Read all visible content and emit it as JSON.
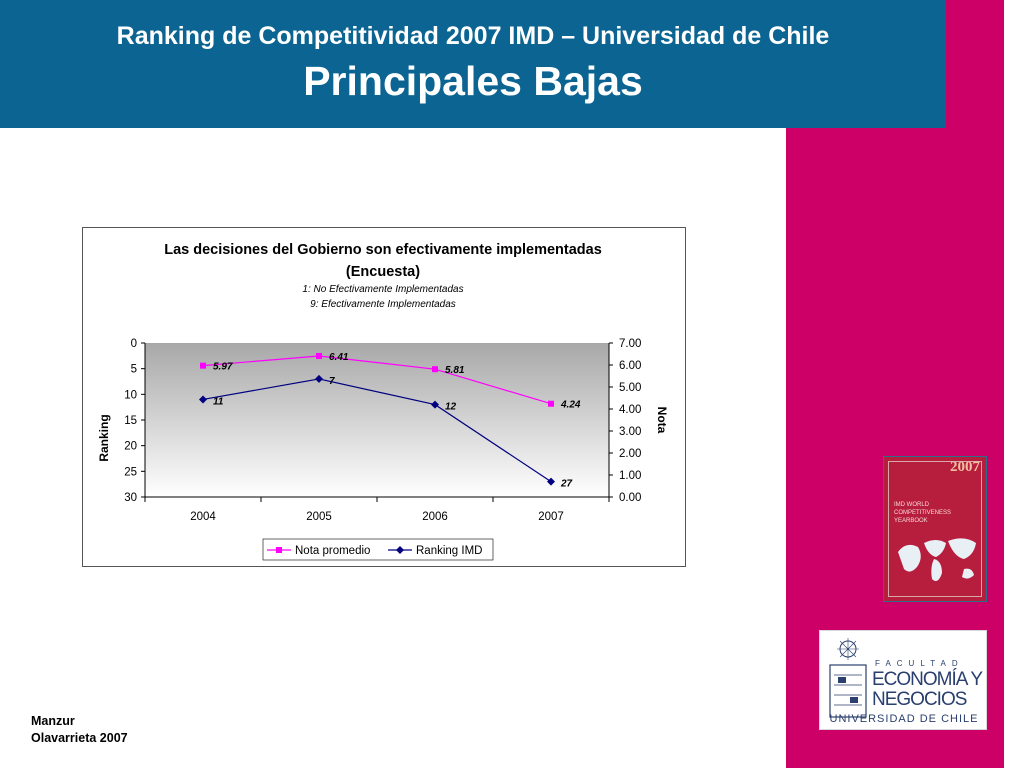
{
  "header": {
    "title": "Ranking de Competitividad 2007  IMD – Universidad de Chile",
    "subtitle": "Principales Bajas"
  },
  "colors": {
    "header_bg": "#0b6491",
    "side_band": "#cc0066",
    "series_nota": "#ff00ff",
    "series_ranking": "#000080"
  },
  "chart_data": {
    "type": "line",
    "title": "Las decisiones del Gobierno son efectivamente implementadas",
    "title_line2": "(Encuesta)",
    "subtitle_line1": "1: No Efectivamente Implementadas",
    "subtitle_line2": "9: Efectivamente Implementadas",
    "categories": [
      "2004",
      "2005",
      "2006",
      "2007"
    ],
    "y_left": {
      "label": "Ranking",
      "lim": [
        0,
        30
      ],
      "ticks": [
        "0",
        "5",
        "10",
        "15",
        "20",
        "25",
        "30"
      ],
      "inverted": true
    },
    "y_right": {
      "label": "Nota",
      "lim": [
        0,
        7
      ],
      "ticks": [
        "7.00",
        "6.00",
        "5.00",
        "4.00",
        "3.00",
        "2.00",
        "1.00",
        "0.00"
      ]
    },
    "series": [
      {
        "name": "Nota promedio",
        "axis": "right",
        "values": [
          5.97,
          6.41,
          5.81,
          4.24
        ],
        "labels": [
          "5.97",
          "6.41",
          "5.81",
          "4.24"
        ],
        "color": "#ff00ff",
        "marker": "square"
      },
      {
        "name": "Ranking IMD",
        "axis": "left",
        "values": [
          11,
          7,
          12,
          27
        ],
        "labels": [
          "11",
          "7",
          "12",
          "27"
        ],
        "color": "#000080",
        "marker": "diamond"
      }
    ],
    "legend": "bottom",
    "grid": false
  },
  "book": {
    "year": "2007",
    "text": "IMD WORLD COMPETITIVENESS YEARBOOK"
  },
  "logo": {
    "faculty": "FACULTAD",
    "line1": "ECONOMÍA Y",
    "line2": "NEGOCIOS",
    "line3": "UNIVERSIDAD DE CHILE"
  },
  "author": {
    "line1": "Manzur",
    "line2": "Olavarrieta 2007"
  }
}
